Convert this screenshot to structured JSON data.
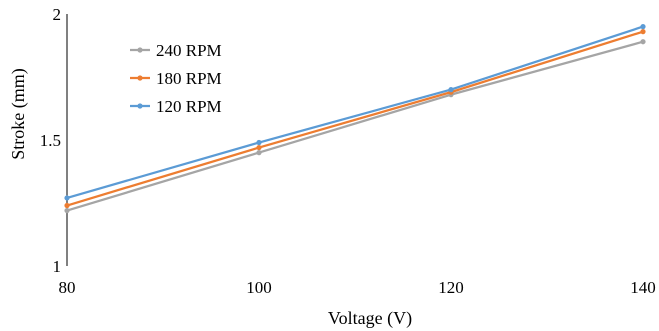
{
  "chart_data": {
    "type": "line",
    "title": "",
    "xlabel": "Voltage (V)",
    "ylabel": "Stroke (mm)",
    "x": [
      80,
      100,
      120,
      140
    ],
    "x_tick_labels": [
      "80",
      "100",
      "120",
      "140"
    ],
    "y_tick_labels": [
      "1",
      "1.5",
      "2"
    ],
    "xlim": [
      80,
      140
    ],
    "ylim": [
      1,
      2
    ],
    "grid": false,
    "legend_position": "top-left",
    "series": [
      {
        "name": "240 RPM",
        "color": "#a5a5a5",
        "values": [
          1.22,
          1.45,
          1.68,
          1.89
        ]
      },
      {
        "name": "180 RPM",
        "color": "#ed7d31",
        "values": [
          1.24,
          1.47,
          1.69,
          1.93
        ]
      },
      {
        "name": "120 RPM",
        "color": "#5b9bd5",
        "values": [
          1.27,
          1.49,
          1.7,
          1.95
        ]
      }
    ]
  }
}
